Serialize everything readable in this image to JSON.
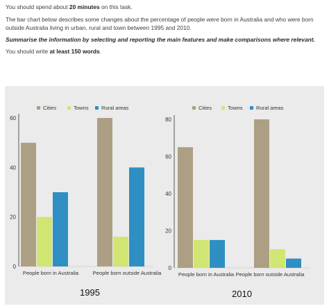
{
  "task": {
    "time_prefix": "You should spend about ",
    "time_bold": "20 minutes",
    "time_suffix": " on this task.",
    "description": "The bar chart below describes some changes about the percentage of people were born in Australia and who were born outside Australia living in urban, rural and town between 1995 and 2010.",
    "instruction": "Summarise the information by selecting and reporting the main features and make comparisons where relevant.",
    "words_prefix": "You should write ",
    "words_bold": "at least 150 words",
    "words_suffix": "."
  },
  "colors": {
    "cities": "#ad9f83",
    "towns": "#d1e572",
    "rural": "#2f8fc2",
    "panel_bg": "#ebebeb",
    "axis": "#333333",
    "text": "#333333"
  },
  "chart_data": [
    {
      "type": "bar",
      "title": "1995",
      "categories": [
        "People born in Australia",
        "People born outside Australia"
      ],
      "series": [
        {
          "name": "Cities",
          "values": [
            50,
            60
          ]
        },
        {
          "name": "Towns",
          "values": [
            20,
            12
          ]
        },
        {
          "name": "Rural areas",
          "values": [
            30,
            40
          ]
        }
      ],
      "yticks": [
        0,
        20,
        40,
        60
      ],
      "ylim": [
        0,
        60
      ],
      "legend": "top",
      "grid": false
    },
    {
      "type": "bar",
      "title": "2010",
      "categories": [
        "People born in Australia",
        "People born outside Australia"
      ],
      "series": [
        {
          "name": "Cities",
          "values": [
            65,
            80
          ]
        },
        {
          "name": "Towns",
          "values": [
            15,
            10
          ]
        },
        {
          "name": "Rural areas",
          "values": [
            15,
            5
          ]
        }
      ],
      "yticks": [
        0,
        20,
        40,
        60,
        80
      ],
      "ylim": [
        0,
        80
      ],
      "legend": "top",
      "grid": false
    }
  ]
}
